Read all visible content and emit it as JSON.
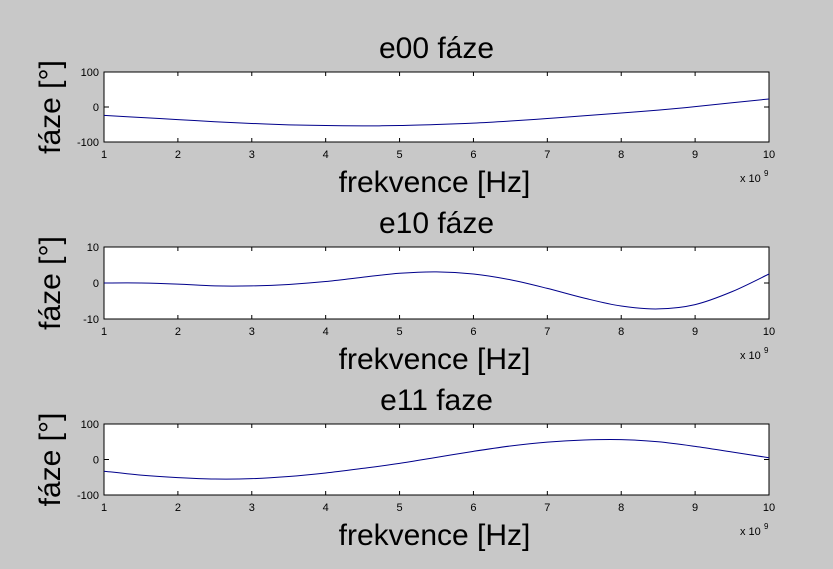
{
  "chart_data": [
    {
      "type": "line",
      "title": "e00 fáze",
      "xlabel": "frekvence [Hz]",
      "ylabel": "fáze [°]",
      "xlim": [
        1,
        10
      ],
      "ylim": [
        -100,
        100
      ],
      "x_ticks": [
        "1",
        "2",
        "3",
        "4",
        "5",
        "6",
        "7",
        "8",
        "9",
        "10"
      ],
      "y_ticks": [
        "100",
        "0",
        "-100"
      ],
      "x_exponent_base": "x 10",
      "x_exponent_power": "9",
      "line_color": "#00008b",
      "grid": false,
      "series": [
        {
          "x": [
            1,
            1.5,
            2,
            2.5,
            3,
            3.5,
            4,
            4.5,
            5,
            5.5,
            6,
            6.5,
            7,
            7.5,
            8,
            8.5,
            9,
            9.5,
            10
          ],
          "y": [
            -24,
            -30,
            -36,
            -42,
            -47,
            -51,
            -53,
            -54,
            -53,
            -50,
            -46,
            -40,
            -33,
            -25,
            -17,
            -9,
            1,
            12,
            23
          ]
        }
      ]
    },
    {
      "type": "line",
      "title": "e10 fáze",
      "xlabel": "frekvence [Hz]",
      "ylabel": "fáze [°]",
      "xlim": [
        1,
        10
      ],
      "ylim": [
        -10,
        10
      ],
      "x_ticks": [
        "1",
        "2",
        "3",
        "4",
        "5",
        "6",
        "7",
        "8",
        "9",
        "10"
      ],
      "y_ticks": [
        "10",
        "0",
        "-10"
      ],
      "x_exponent_base": "x 10",
      "x_exponent_power": "9",
      "line_color": "#00008b",
      "grid": false,
      "series": [
        {
          "x": [
            1,
            1.5,
            2,
            2.5,
            3,
            3.5,
            4,
            4.5,
            5,
            5.5,
            6,
            6.5,
            7,
            7.5,
            8,
            8.5,
            9,
            9.5,
            10
          ],
          "y": [
            0,
            0,
            -0.3,
            -0.8,
            -0.8,
            -0.4,
            0.4,
            1.6,
            2.7,
            3.1,
            2.5,
            0.9,
            -1.5,
            -4.2,
            -6.4,
            -7.2,
            -6.0,
            -2.4,
            2.5
          ]
        }
      ]
    },
    {
      "type": "line",
      "title": "e11 faze",
      "xlabel": "frekvence [Hz]",
      "ylabel": "fáze [°]",
      "xlim": [
        1,
        10
      ],
      "ylim": [
        -100,
        100
      ],
      "x_ticks": [
        "1",
        "2",
        "3",
        "4",
        "5",
        "6",
        "7",
        "8",
        "9",
        "10"
      ],
      "y_ticks": [
        "100",
        "0",
        "-100"
      ],
      "x_exponent_base": "x 10",
      "x_exponent_power": "9",
      "line_color": "#00008b",
      "grid": false,
      "series": [
        {
          "x": [
            1,
            1.5,
            2,
            2.5,
            3,
            3.5,
            4,
            4.5,
            5,
            5.5,
            6,
            6.5,
            7,
            7.5,
            8,
            8.5,
            9,
            9.5,
            10
          ],
          "y": [
            -33,
            -44,
            -51,
            -55,
            -54,
            -48,
            -38,
            -25,
            -11,
            6,
            23,
            38,
            49,
            55,
            56,
            50,
            37,
            21,
            5
          ]
        }
      ]
    }
  ]
}
